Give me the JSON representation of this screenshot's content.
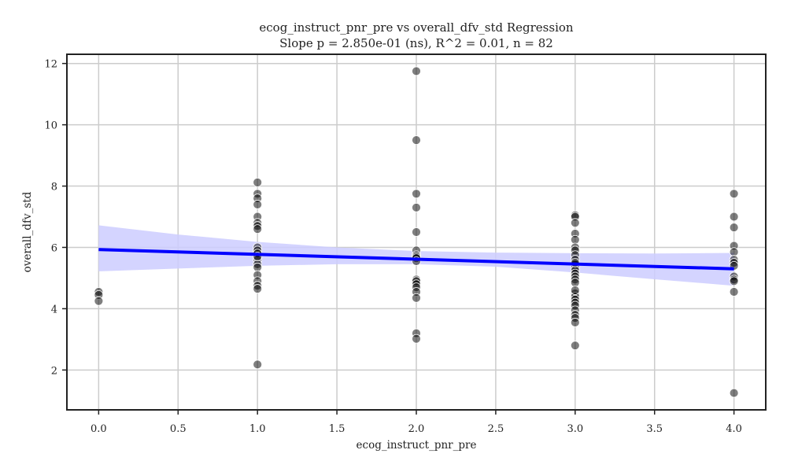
{
  "chart_data": {
    "type": "scatter",
    "title": "ecog_instruct_pnr_pre vs overall_dfv_std Regression",
    "subtitle": "Slope p = 2.850e-01 (ns), R^2 = 0.01, n = 82",
    "xlabel": "ecog_instruct_pnr_pre",
    "ylabel": "overall_dfv_std",
    "xlim": [
      -0.2,
      4.2
    ],
    "ylim": [
      0.7,
      12.3
    ],
    "xticks": [
      0.0,
      0.5,
      1.0,
      1.5,
      2.0,
      2.5,
      3.0,
      3.5,
      4.0
    ],
    "xtick_labels": [
      "0.0",
      "0.5",
      "1.0",
      "1.5",
      "2.0",
      "2.5",
      "3.0",
      "3.5",
      "4.0"
    ],
    "yticks": [
      2,
      4,
      6,
      8,
      10,
      12
    ],
    "ytick_labels": [
      "2",
      "4",
      "6",
      "8",
      "10",
      "12"
    ],
    "grid": true,
    "point_color": "#000000",
    "line_color": "#0000ff",
    "band_color": "#ccccff",
    "points": [
      {
        "x": 0,
        "y": 4.55
      },
      {
        "x": 0,
        "y": 4.45
      },
      {
        "x": 0,
        "y": 4.25
      },
      {
        "x": 1,
        "y": 8.12
      },
      {
        "x": 1,
        "y": 7.75
      },
      {
        "x": 1,
        "y": 7.6
      },
      {
        "x": 1,
        "y": 7.4
      },
      {
        "x": 1,
        "y": 7.0
      },
      {
        "x": 1,
        "y": 6.8
      },
      {
        "x": 1,
        "y": 6.7
      },
      {
        "x": 1,
        "y": 6.6
      },
      {
        "x": 1,
        "y": 6.0
      },
      {
        "x": 1,
        "y": 5.9
      },
      {
        "x": 1,
        "y": 5.8
      },
      {
        "x": 1,
        "y": 5.6
      },
      {
        "x": 1,
        "y": 5.45
      },
      {
        "x": 1,
        "y": 5.35
      },
      {
        "x": 1,
        "y": 5.1
      },
      {
        "x": 1,
        "y": 4.9
      },
      {
        "x": 1,
        "y": 4.75
      },
      {
        "x": 1,
        "y": 4.65
      },
      {
        "x": 1,
        "y": 2.18
      },
      {
        "x": 2,
        "y": 11.75
      },
      {
        "x": 2,
        "y": 9.5
      },
      {
        "x": 2,
        "y": 7.75
      },
      {
        "x": 2,
        "y": 7.3
      },
      {
        "x": 2,
        "y": 6.5
      },
      {
        "x": 2,
        "y": 5.9
      },
      {
        "x": 2,
        "y": 5.75
      },
      {
        "x": 2,
        "y": 5.7
      },
      {
        "x": 2,
        "y": 5.65
      },
      {
        "x": 2,
        "y": 4.95
      },
      {
        "x": 2,
        "y": 4.9
      },
      {
        "x": 2,
        "y": 4.8
      },
      {
        "x": 2,
        "y": 4.7
      },
      {
        "x": 2,
        "y": 4.55
      },
      {
        "x": 2,
        "y": 4.35
      },
      {
        "x": 2,
        "y": 3.2
      },
      {
        "x": 2,
        "y": 3.02
      },
      {
        "x": 3,
        "y": 7.05
      },
      {
        "x": 3,
        "y": 7.0
      },
      {
        "x": 3,
        "y": 6.8
      },
      {
        "x": 3,
        "y": 6.45
      },
      {
        "x": 3,
        "y": 6.25
      },
      {
        "x": 3,
        "y": 6.0
      },
      {
        "x": 3,
        "y": 5.9
      },
      {
        "x": 3,
        "y": 5.75
      },
      {
        "x": 3,
        "y": 5.6
      },
      {
        "x": 3,
        "y": 5.45
      },
      {
        "x": 3,
        "y": 5.35
      },
      {
        "x": 3,
        "y": 5.25
      },
      {
        "x": 3,
        "y": 5.15
      },
      {
        "x": 3,
        "y": 5.05
      },
      {
        "x": 3,
        "y": 4.95
      },
      {
        "x": 3,
        "y": 4.85
      },
      {
        "x": 3,
        "y": 4.5
      },
      {
        "x": 3,
        "y": 4.4
      },
      {
        "x": 3,
        "y": 4.3
      },
      {
        "x": 3,
        "y": 4.2
      },
      {
        "x": 3,
        "y": 4.1
      },
      {
        "x": 3,
        "y": 3.95
      },
      {
        "x": 3,
        "y": 3.8
      },
      {
        "x": 3,
        "y": 3.7
      },
      {
        "x": 3,
        "y": 3.55
      },
      {
        "x": 3,
        "y": 2.8
      },
      {
        "x": 4,
        "y": 7.75
      },
      {
        "x": 4,
        "y": 7.0
      },
      {
        "x": 4,
        "y": 6.65
      },
      {
        "x": 4,
        "y": 6.05
      },
      {
        "x": 4,
        "y": 5.85
      },
      {
        "x": 4,
        "y": 5.6
      },
      {
        "x": 4,
        "y": 5.5
      },
      {
        "x": 4,
        "y": 5.4
      },
      {
        "x": 4,
        "y": 5.05
      },
      {
        "x": 4,
        "y": 4.95
      },
      {
        "x": 4,
        "y": 4.9
      },
      {
        "x": 4,
        "y": 4.55
      },
      {
        "x": 4,
        "y": 1.25
      },
      {
        "x": 3,
        "y": 5.5
      },
      {
        "x": 3,
        "y": 4.6
      },
      {
        "x": 2,
        "y": 5.55
      },
      {
        "x": 1,
        "y": 5.7
      }
    ],
    "regression": {
      "x": [
        0,
        4
      ],
      "y": [
        5.93,
        5.3
      ]
    },
    "confidence_band": {
      "x": [
        0,
        0.5,
        1,
        1.5,
        2,
        2.5,
        3,
        3.5,
        4
      ],
      "upper": [
        6.72,
        6.42,
        6.18,
        6.0,
        5.88,
        5.83,
        5.81,
        5.8,
        5.82
      ],
      "lower": [
        5.22,
        5.31,
        5.4,
        5.45,
        5.45,
        5.37,
        5.18,
        4.96,
        4.75
      ]
    }
  }
}
